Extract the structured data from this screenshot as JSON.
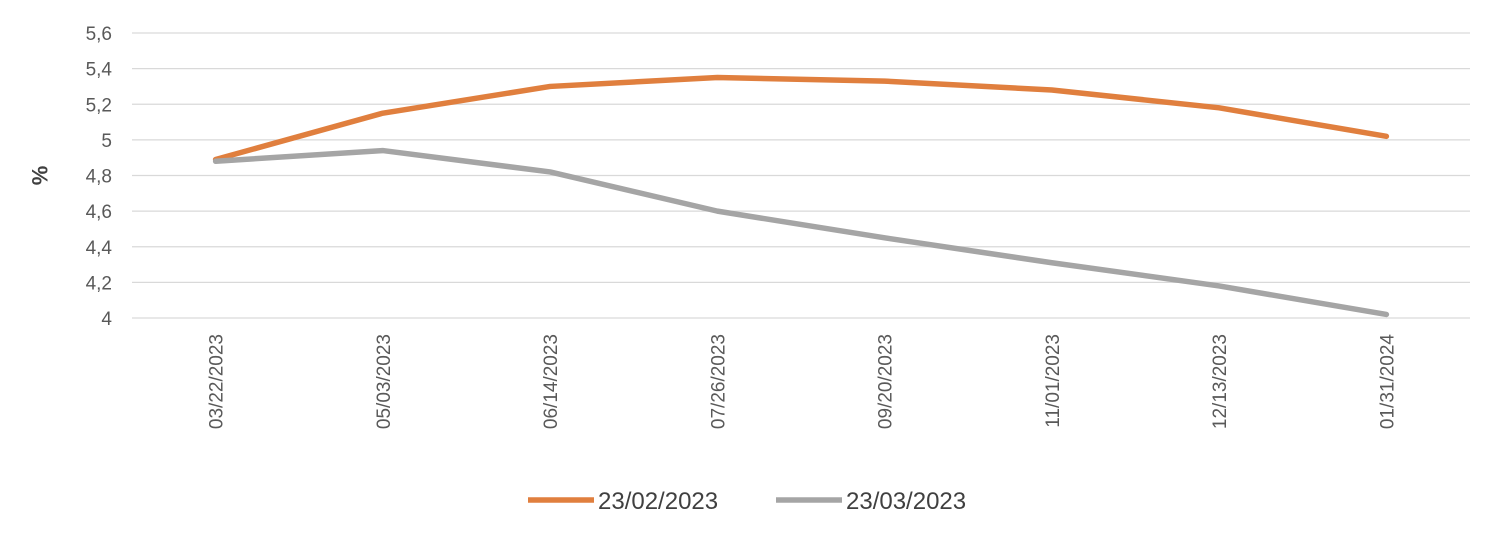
{
  "chart_data": {
    "type": "line",
    "title": "",
    "ylabel": "%",
    "xlabel": "",
    "x": [
      "03/22/2023",
      "05/03/2023",
      "06/14/2023",
      "07/26/2023",
      "09/20/2023",
      "11/01/2023",
      "12/13/2023",
      "01/31/2024"
    ],
    "y_ticks": [
      "4",
      "4,2",
      "4,4",
      "4,6",
      "4,8",
      "5",
      "5,2",
      "5,4",
      "5,6"
    ],
    "ylim": [
      4,
      5.6
    ],
    "grid": true,
    "legend_position": "bottom",
    "series": [
      {
        "name": "23/02/2023",
        "color": "#e07f3e",
        "values": [
          4.89,
          5.15,
          5.3,
          5.35,
          5.33,
          5.28,
          5.18,
          5.02
        ]
      },
      {
        "name": "23/03/2023",
        "color": "#a5a5a5",
        "values": [
          4.88,
          4.94,
          4.82,
          4.6,
          4.45,
          4.31,
          4.18,
          4.02
        ]
      }
    ]
  }
}
